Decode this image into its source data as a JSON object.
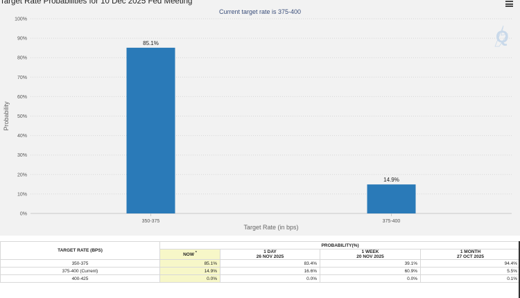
{
  "header": {
    "title": "Target Rate Probabilities for 10 Dec 2025 Fed Meeting",
    "subtitle": "Current target rate is 375-400",
    "menu_icon": "hamburger-menu-icon",
    "watermark_icon": "q-logo-icon"
  },
  "chart_data": {
    "type": "bar",
    "categories": [
      "350-375",
      "375-400"
    ],
    "values": [
      85.1,
      14.9
    ],
    "data_labels": [
      "85.1%",
      "14.9%"
    ],
    "xlabel": "Target Rate (in bps)",
    "ylabel": "Probability",
    "ylim": [
      0,
      100
    ],
    "yticks": [
      "0%",
      "10%",
      "20%",
      "30%",
      "40%",
      "50%",
      "60%",
      "70%",
      "80%",
      "90%",
      "100%"
    ],
    "grid": true,
    "bar_color": "#2a7ab8"
  },
  "table": {
    "rate_header": "TARGET RATE (BPS)",
    "prob_header": "PROBABILITY(%)",
    "columns": [
      {
        "label": "NOW",
        "sup": "*",
        "date": ""
      },
      {
        "label": "1 DAY",
        "date": "26 NOV 2025"
      },
      {
        "label": "1 WEEK",
        "date": "20 NOV 2025"
      },
      {
        "label": "1 MONTH",
        "date": "27 OCT 2025"
      }
    ],
    "rows": [
      {
        "rate": "350-375",
        "values": [
          "85.1%",
          "83.4%",
          "39.1%",
          "94.4%"
        ]
      },
      {
        "rate": "375-400 (Current)",
        "values": [
          "14.9%",
          "16.6%",
          "60.9%",
          "5.5%"
        ]
      },
      {
        "rate": "400-425",
        "values": [
          "0.0%",
          "0.0%",
          "0.0%",
          "0.1%"
        ]
      }
    ]
  }
}
